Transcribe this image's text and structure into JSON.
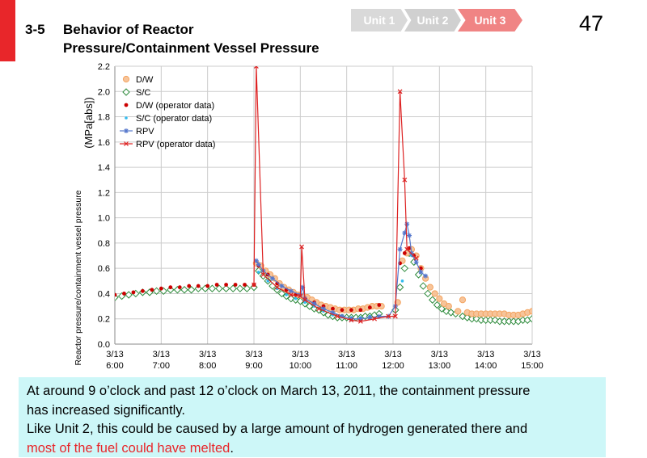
{
  "header": {
    "section_number": "3-5",
    "title_line1": "Behavior of Reactor",
    "title_line2": "Pressure/Containment Vessel Pressure",
    "page_number": "47",
    "unit_tabs": [
      {
        "label": "Unit 1",
        "active": false
      },
      {
        "label": "Unit 2",
        "active": false
      },
      {
        "label": "Unit 3",
        "active": true
      }
    ]
  },
  "colors": {
    "accent_red": "#e8262a",
    "dw": "#f4a460",
    "sc": "#2e8b3c",
    "dw_op": "#cc0000",
    "sc_op": "#33bbee",
    "rpv": "#5577cc",
    "rpv_op": "#dd2222",
    "text_box_bg": "#cdf7f8"
  },
  "chart_data": {
    "type": "scatter",
    "ylabel_line1": "(MPa[abs])",
    "ylabel_line2": "Reactor pressure/containment vessel pressure",
    "xlim": [
      6,
      15
    ],
    "ylim": [
      0,
      2.2
    ],
    "yticks": [
      "0.0",
      "0.2",
      "0.4",
      "0.6",
      "0.8",
      "1.0",
      "1.2",
      "1.4",
      "1.6",
      "1.8",
      "2.0",
      "2.2"
    ],
    "xticks": [
      {
        "x": 6,
        "date": "3/13",
        "time": "6:00"
      },
      {
        "x": 7,
        "date": "3/13",
        "time": "7:00"
      },
      {
        "x": 8,
        "date": "3/13",
        "time": "8:00"
      },
      {
        "x": 9,
        "date": "3/13",
        "time": "9:00"
      },
      {
        "x": 10,
        "date": "3/13",
        "time": "10:00"
      },
      {
        "x": 11,
        "date": "3/13",
        "time": "11:00"
      },
      {
        "x": 12,
        "date": "3/13",
        "time": "12:00"
      },
      {
        "x": 13,
        "date": "3/13",
        "time": "13:00"
      },
      {
        "x": 14,
        "date": "3/13",
        "time": "14:00"
      },
      {
        "x": 15,
        "date": "3/13",
        "time": "15:00"
      }
    ],
    "grid": true,
    "legend_position": "top-left",
    "series": [
      {
        "name": "D/W",
        "marker": "circle-open",
        "color": "#f4a460",
        "x": [
          9.05,
          9.15,
          9.25,
          9.35,
          9.45,
          9.55,
          9.65,
          9.75,
          9.85,
          9.95,
          10.05,
          10.15,
          10.25,
          10.35,
          10.45,
          10.55,
          10.65,
          10.75,
          10.85,
          10.95,
          11.05,
          11.15,
          11.25,
          11.35,
          11.45,
          11.55,
          11.65,
          11.75,
          12.1,
          12.2,
          12.3,
          12.4,
          12.5,
          12.6,
          12.7,
          12.8,
          12.9,
          13.0,
          13.1,
          13.2,
          13.4,
          13.5,
          13.6,
          13.7,
          13.8,
          13.9,
          14.0,
          14.1,
          14.2,
          14.3,
          14.4,
          14.5,
          14.6,
          14.7,
          14.8,
          14.9,
          15.0
        ],
        "y": [
          0.64,
          0.62,
          0.58,
          0.55,
          0.52,
          0.48,
          0.45,
          0.43,
          0.41,
          0.39,
          0.38,
          0.37,
          0.35,
          0.33,
          0.31,
          0.3,
          0.29,
          0.28,
          0.27,
          0.27,
          0.27,
          0.27,
          0.28,
          0.28,
          0.29,
          0.3,
          0.3,
          0.3,
          0.33,
          0.66,
          0.72,
          0.75,
          0.7,
          0.6,
          0.52,
          0.45,
          0.4,
          0.36,
          0.32,
          0.3,
          0.26,
          0.35,
          0.25,
          0.24,
          0.24,
          0.24,
          0.24,
          0.24,
          0.24,
          0.24,
          0.24,
          0.23,
          0.23,
          0.23,
          0.24,
          0.25,
          0.26
        ]
      },
      {
        "name": "S/C",
        "marker": "diamond-open",
        "color": "#2e8b3c",
        "x": [
          6.0,
          6.15,
          6.3,
          6.45,
          6.6,
          6.75,
          6.9,
          7.05,
          7.2,
          7.35,
          7.5,
          7.65,
          7.8,
          7.95,
          8.1,
          8.25,
          8.4,
          8.55,
          8.7,
          8.85,
          9.0,
          9.1,
          9.2,
          9.3,
          9.4,
          9.5,
          9.6,
          9.7,
          9.8,
          9.9,
          10.0,
          10.1,
          10.2,
          10.3,
          10.4,
          10.5,
          10.6,
          10.7,
          10.8,
          10.9,
          11.0,
          11.1,
          11.2,
          11.3,
          11.4,
          11.5,
          11.6,
          11.7,
          12.05,
          12.15,
          12.25,
          12.35,
          12.45,
          12.55,
          12.65,
          12.75,
          12.85,
          12.95,
          13.05,
          13.15,
          13.25,
          13.35,
          13.5,
          13.6,
          13.7,
          13.8,
          13.9,
          14.0,
          14.1,
          14.2,
          14.3,
          14.4,
          14.5,
          14.6,
          14.7,
          14.8,
          14.9,
          15.0
        ],
        "y": [
          0.37,
          0.38,
          0.39,
          0.4,
          0.41,
          0.41,
          0.42,
          0.42,
          0.43,
          0.43,
          0.43,
          0.43,
          0.44,
          0.44,
          0.44,
          0.44,
          0.44,
          0.44,
          0.44,
          0.44,
          0.45,
          0.58,
          0.54,
          0.5,
          0.46,
          0.43,
          0.4,
          0.38,
          0.36,
          0.35,
          0.34,
          0.32,
          0.3,
          0.28,
          0.27,
          0.25,
          0.23,
          0.22,
          0.21,
          0.21,
          0.21,
          0.21,
          0.21,
          0.21,
          0.22,
          0.22,
          0.23,
          0.24,
          0.27,
          0.45,
          0.6,
          0.72,
          0.65,
          0.55,
          0.46,
          0.4,
          0.35,
          0.31,
          0.28,
          0.26,
          0.25,
          0.24,
          0.22,
          0.21,
          0.2,
          0.2,
          0.19,
          0.19,
          0.19,
          0.19,
          0.18,
          0.18,
          0.18,
          0.18,
          0.18,
          0.19,
          0.19,
          0.2
        ]
      },
      {
        "name": "D/W (operator data)",
        "marker": "dot",
        "color": "#cc0000",
        "x": [
          6.0,
          6.2,
          6.4,
          6.6,
          6.8,
          7.0,
          7.2,
          7.4,
          7.6,
          7.8,
          8.0,
          8.2,
          8.4,
          8.6,
          8.8,
          9.0,
          9.1,
          9.3,
          9.5,
          9.7,
          9.9,
          10.1,
          10.3,
          10.5,
          10.7,
          10.9,
          11.1,
          11.3,
          11.5,
          11.7,
          12.15,
          12.25,
          12.35,
          12.45,
          12.6
        ],
        "y": [
          0.39,
          0.4,
          0.41,
          0.42,
          0.43,
          0.44,
          0.45,
          0.45,
          0.46,
          0.46,
          0.46,
          0.47,
          0.47,
          0.47,
          0.47,
          0.47,
          0.62,
          0.55,
          0.48,
          0.43,
          0.39,
          0.36,
          0.33,
          0.3,
          0.28,
          0.27,
          0.27,
          0.27,
          0.29,
          0.31,
          0.64,
          0.72,
          0.76,
          0.7,
          0.6
        ]
      },
      {
        "name": "S/C (operator data)",
        "marker": "small-dot",
        "color": "#33bbee",
        "x": [
          9.1,
          9.3,
          9.5,
          9.7,
          9.9,
          10.1,
          10.3,
          10.5,
          10.7,
          10.9,
          11.1,
          11.3,
          11.5,
          12.2,
          12.4
        ],
        "y": [
          0.57,
          0.5,
          0.44,
          0.39,
          0.36,
          0.33,
          0.3,
          0.26,
          0.23,
          0.22,
          0.21,
          0.21,
          0.22,
          0.5,
          0.7
        ]
      },
      {
        "name": "RPV",
        "marker": "star",
        "color": "#5577cc",
        "x": [
          9.05,
          9.1,
          9.2,
          9.4,
          9.6,
          9.8,
          10.0,
          10.05,
          10.1,
          10.3,
          10.5,
          10.7,
          10.9,
          11.1,
          11.3,
          11.5,
          11.7,
          11.9,
          12.05,
          12.15,
          12.25,
          12.3,
          12.35,
          12.4,
          12.5,
          12.6,
          12.7
        ],
        "y": [
          0.66,
          0.63,
          0.58,
          0.52,
          0.46,
          0.42,
          0.39,
          0.45,
          0.36,
          0.32,
          0.28,
          0.25,
          0.22,
          0.2,
          0.2,
          0.21,
          0.22,
          0.22,
          0.3,
          0.75,
          0.88,
          0.95,
          0.86,
          0.72,
          0.65,
          0.57,
          0.54
        ]
      },
      {
        "name": "RPV (operator data)",
        "marker": "x",
        "color": "#dd2222",
        "x": [
          9.0,
          9.05,
          9.2,
          9.5,
          9.8,
          10.0,
          10.03,
          10.1,
          10.4,
          10.8,
          11.1,
          11.3,
          11.6,
          11.9,
          12.05,
          12.15,
          12.25,
          12.3,
          12.5
        ],
        "y": [
          0.47,
          2.2,
          0.55,
          0.45,
          0.39,
          0.38,
          0.77,
          0.35,
          0.28,
          0.22,
          0.19,
          0.18,
          0.2,
          0.22,
          0.22,
          2.0,
          1.3,
          0.75,
          0.68
        ]
      }
    ]
  },
  "text_box": {
    "line1": "At around 9 o’clock and past 12 o’clock on March 13, 2011, the containment pressure",
    "line2": "has increased significantly.",
    "line3": "Like Unit 2, this could be caused by a large amount of hydrogen generated there and",
    "line4_red": "most of the fuel could have melted",
    "line4_end": "."
  }
}
